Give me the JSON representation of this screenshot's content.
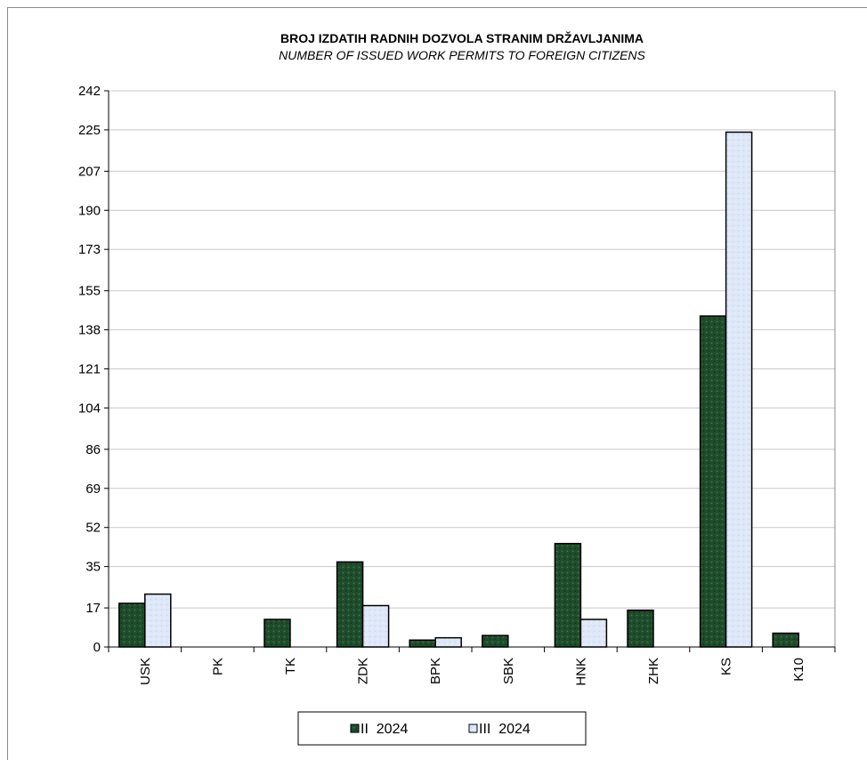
{
  "chart_data": {
    "type": "bar",
    "title": "BROJ IZDATIH RADNIH DOZVOLA STRANIM DRŽAVLJANIMA",
    "subtitle": "NUMBER OF ISSUED WORK PERMITS TO FOREIGN CITIZENS",
    "categories": [
      "USK",
      "PK",
      "TK",
      "ZDK",
      "BPK",
      "SBK",
      "HNK",
      "ZHK",
      "KS",
      "K10"
    ],
    "series": [
      {
        "name": "II  2024",
        "color": "#1f4d2c",
        "values": [
          19,
          0,
          12,
          37,
          3,
          5,
          45,
          16,
          144,
          6
        ]
      },
      {
        "name": "III  2024",
        "color": "#d9e4f7",
        "values": [
          23,
          0,
          0,
          18,
          4,
          0,
          12,
          0,
          224,
          0
        ]
      }
    ],
    "yticks": [
      0,
      17,
      35,
      52,
      69,
      86,
      104,
      121,
      138,
      155,
      173,
      190,
      207,
      225,
      242
    ],
    "ylim": [
      0,
      242
    ],
    "xlabel": "",
    "ylabel": "",
    "grid": true,
    "legend_position": "bottom"
  }
}
